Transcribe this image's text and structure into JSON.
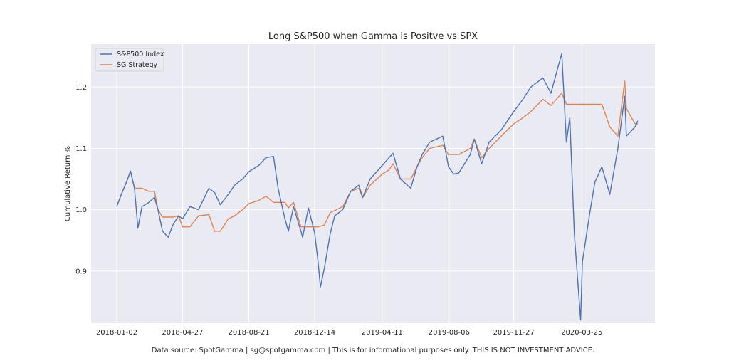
{
  "chart_data": {
    "type": "line",
    "title": "Long S&P500 when Gamma is Positve vs SPX",
    "xlabel": "",
    "ylabel": "Cumulative Return %",
    "x_ticks": [
      "2018-01-02",
      "2018-04-27",
      "2018-08-21",
      "2018-12-14",
      "2019-04-11",
      "2019-08-06",
      "2019-11-27",
      "2020-03-25"
    ],
    "y_ticks": [
      "0.9",
      "1.0",
      "1.1",
      "1.2"
    ],
    "ylim": [
      0.815,
      1.27
    ],
    "grid": true,
    "legend_position": "top-left",
    "footer": "Data source: SpotGamma | sg@spotgamma.com | This is for informational purposes only. THIS IS NOT INVESTMENT ADVICE.",
    "colors": {
      "sp500": "#4c72b0",
      "strategy": "#dd8452",
      "background": "#eaeaf2",
      "grid": "#ffffff"
    },
    "series": [
      {
        "name": "S&P500 Index",
        "color": "#4c72b0",
        "points": [
          [
            "2018-01-02",
            1.005
          ],
          [
            "2018-01-10",
            1.025
          ],
          [
            "2018-01-19",
            1.045
          ],
          [
            "2018-01-26",
            1.063
          ],
          [
            "2018-02-02",
            1.035
          ],
          [
            "2018-02-08",
            0.97
          ],
          [
            "2018-02-15",
            1.005
          ],
          [
            "2018-02-27",
            1.012
          ],
          [
            "2018-03-09",
            1.02
          ],
          [
            "2018-03-15",
            1.0
          ],
          [
            "2018-03-23",
            0.965
          ],
          [
            "2018-04-02",
            0.955
          ],
          [
            "2018-04-10",
            0.975
          ],
          [
            "2018-04-20",
            0.99
          ],
          [
            "2018-04-27",
            0.985
          ],
          [
            "2018-05-10",
            1.005
          ],
          [
            "2018-05-25",
            1.0
          ],
          [
            "2018-06-12",
            1.035
          ],
          [
            "2018-06-22",
            1.028
          ],
          [
            "2018-07-02",
            1.008
          ],
          [
            "2018-07-16",
            1.025
          ],
          [
            "2018-07-27",
            1.04
          ],
          [
            "2018-08-10",
            1.05
          ],
          [
            "2018-08-21",
            1.062
          ],
          [
            "2018-09-07",
            1.072
          ],
          [
            "2018-09-20",
            1.085
          ],
          [
            "2018-10-03",
            1.087
          ],
          [
            "2018-10-11",
            1.035
          ],
          [
            "2018-10-23",
            0.985
          ],
          [
            "2018-10-29",
            0.965
          ],
          [
            "2018-11-07",
            1.005
          ],
          [
            "2018-11-20",
            0.965
          ],
          [
            "2018-11-23",
            0.955
          ],
          [
            "2018-12-03",
            1.003
          ],
          [
            "2018-12-14",
            0.962
          ],
          [
            "2018-12-20",
            0.915
          ],
          [
            "2018-12-24",
            0.874
          ],
          [
            "2018-12-31",
            0.905
          ],
          [
            "2019-01-10",
            0.96
          ],
          [
            "2019-01-18",
            0.99
          ],
          [
            "2019-02-01",
            1.0
          ],
          [
            "2019-02-15",
            1.03
          ],
          [
            "2019-03-01",
            1.04
          ],
          [
            "2019-03-08",
            1.02
          ],
          [
            "2019-03-21",
            1.05
          ],
          [
            "2019-04-11",
            1.072
          ],
          [
            "2019-04-23",
            1.085
          ],
          [
            "2019-04-30",
            1.092
          ],
          [
            "2019-05-13",
            1.05
          ],
          [
            "2019-05-31",
            1.035
          ],
          [
            "2019-06-11",
            1.07
          ],
          [
            "2019-06-20",
            1.09
          ],
          [
            "2019-07-03",
            1.11
          ],
          [
            "2019-07-26",
            1.12
          ],
          [
            "2019-08-05",
            1.07
          ],
          [
            "2019-08-14",
            1.058
          ],
          [
            "2019-08-23",
            1.06
          ],
          [
            "2019-09-12",
            1.09
          ],
          [
            "2019-09-19",
            1.115
          ],
          [
            "2019-10-02",
            1.075
          ],
          [
            "2019-10-15",
            1.11
          ],
          [
            "2019-11-05",
            1.13
          ],
          [
            "2019-11-27",
            1.16
          ],
          [
            "2019-12-13",
            1.18
          ],
          [
            "2019-12-27",
            1.2
          ],
          [
            "2020-01-17",
            1.215
          ],
          [
            "2020-01-31",
            1.19
          ],
          [
            "2020-02-19",
            1.255
          ],
          [
            "2020-02-27",
            1.11
          ],
          [
            "2020-03-04",
            1.15
          ],
          [
            "2020-03-12",
            0.96
          ],
          [
            "2020-03-23",
            0.82
          ],
          [
            "2020-03-26",
            0.915
          ],
          [
            "2020-04-08",
            0.995
          ],
          [
            "2020-04-17",
            1.045
          ],
          [
            "2020-04-29",
            1.07
          ],
          [
            "2020-05-13",
            1.025
          ],
          [
            "2020-05-27",
            1.1
          ],
          [
            "2020-06-08",
            1.185
          ],
          [
            "2020-06-11",
            1.12
          ],
          [
            "2020-06-26",
            1.135
          ],
          [
            "2020-07-01",
            1.145
          ]
        ]
      },
      {
        "name": "SG Strategy",
        "color": "#dd8452",
        "points": [
          [
            "2018-01-02",
            1.005
          ],
          [
            "2018-01-10",
            1.025
          ],
          [
            "2018-01-19",
            1.045
          ],
          [
            "2018-01-26",
            1.063
          ],
          [
            "2018-02-02",
            1.035
          ],
          [
            "2018-02-15",
            1.035
          ],
          [
            "2018-02-27",
            1.03
          ],
          [
            "2018-03-09",
            1.03
          ],
          [
            "2018-03-15",
            1.0
          ],
          [
            "2018-03-23",
            0.988
          ],
          [
            "2018-04-10",
            0.988
          ],
          [
            "2018-04-20",
            0.99
          ],
          [
            "2018-04-27",
            0.972
          ],
          [
            "2018-05-10",
            0.972
          ],
          [
            "2018-05-25",
            0.99
          ],
          [
            "2018-06-12",
            0.992
          ],
          [
            "2018-06-22",
            0.965
          ],
          [
            "2018-07-02",
            0.965
          ],
          [
            "2018-07-16",
            0.985
          ],
          [
            "2018-07-27",
            0.99
          ],
          [
            "2018-08-10",
            1.0
          ],
          [
            "2018-08-21",
            1.01
          ],
          [
            "2018-09-07",
            1.015
          ],
          [
            "2018-09-20",
            1.022
          ],
          [
            "2018-10-03",
            1.012
          ],
          [
            "2018-10-11",
            1.012
          ],
          [
            "2018-10-23",
            1.012
          ],
          [
            "2018-10-29",
            1.003
          ],
          [
            "2018-11-07",
            1.012
          ],
          [
            "2018-11-20",
            0.972
          ],
          [
            "2018-11-23",
            0.972
          ],
          [
            "2018-12-03",
            0.972
          ],
          [
            "2018-12-14",
            0.972
          ],
          [
            "2018-12-20",
            0.972
          ],
          [
            "2018-12-31",
            0.975
          ],
          [
            "2019-01-10",
            0.995
          ],
          [
            "2019-02-01",
            1.005
          ],
          [
            "2019-02-15",
            1.03
          ],
          [
            "2019-03-01",
            1.035
          ],
          [
            "2019-03-08",
            1.02
          ],
          [
            "2019-03-21",
            1.04
          ],
          [
            "2019-04-11",
            1.058
          ],
          [
            "2019-04-23",
            1.065
          ],
          [
            "2019-04-30",
            1.075
          ],
          [
            "2019-05-13",
            1.05
          ],
          [
            "2019-05-31",
            1.05
          ],
          [
            "2019-06-11",
            1.07
          ],
          [
            "2019-06-20",
            1.085
          ],
          [
            "2019-07-03",
            1.1
          ],
          [
            "2019-07-26",
            1.105
          ],
          [
            "2019-08-05",
            1.09
          ],
          [
            "2019-08-14",
            1.09
          ],
          [
            "2019-08-23",
            1.09
          ],
          [
            "2019-09-12",
            1.1
          ],
          [
            "2019-09-19",
            1.115
          ],
          [
            "2019-10-02",
            1.085
          ],
          [
            "2019-10-15",
            1.1
          ],
          [
            "2019-11-05",
            1.12
          ],
          [
            "2019-11-27",
            1.14
          ],
          [
            "2019-12-13",
            1.15
          ],
          [
            "2019-12-27",
            1.16
          ],
          [
            "2020-01-17",
            1.18
          ],
          [
            "2020-01-31",
            1.17
          ],
          [
            "2020-02-19",
            1.19
          ],
          [
            "2020-02-27",
            1.172
          ],
          [
            "2020-03-04",
            1.172
          ],
          [
            "2020-03-12",
            1.172
          ],
          [
            "2020-03-23",
            1.172
          ],
          [
            "2020-04-08",
            1.172
          ],
          [
            "2020-04-17",
            1.172
          ],
          [
            "2020-04-29",
            1.172
          ],
          [
            "2020-05-13",
            1.135
          ],
          [
            "2020-05-27",
            1.12
          ],
          [
            "2020-06-08",
            1.21
          ],
          [
            "2020-06-11",
            1.165
          ],
          [
            "2020-06-26",
            1.14
          ],
          [
            "2020-07-01",
            1.14
          ]
        ]
      }
    ]
  }
}
